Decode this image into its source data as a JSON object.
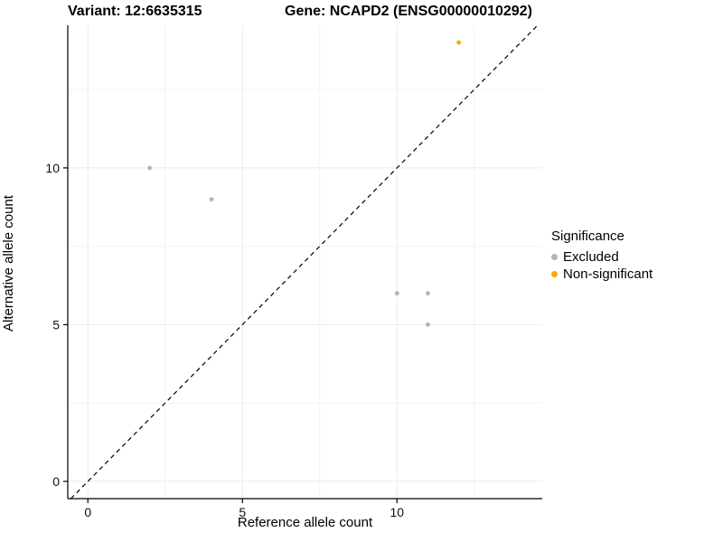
{
  "chart_data": {
    "type": "scatter",
    "title_left": "Variant: 12:6635315",
    "title_right": "Gene: NCAPD2 (ENSG00000010292)",
    "xlabel": "Reference allele count",
    "ylabel": "Alternative allele count",
    "xlim": [
      -0.65,
      14.7
    ],
    "ylim": [
      -0.55,
      14.55
    ],
    "xticks": [
      0,
      5,
      10
    ],
    "yticks": [
      0,
      5,
      10
    ],
    "grid": "major and minor light gray",
    "identity_line": {
      "slope": 1,
      "intercept": 0,
      "style": "dashed",
      "color": "#000000"
    },
    "series": [
      {
        "name": "Excluded",
        "color": "#b4b4b4",
        "points": [
          [
            2,
            10
          ],
          [
            4,
            9
          ],
          [
            10,
            6
          ],
          [
            11,
            6
          ],
          [
            11,
            5
          ]
        ]
      },
      {
        "name": "Non-significant",
        "color": "#ffa500",
        "points": [
          [
            12,
            14
          ]
        ]
      }
    ],
    "legend": {
      "title": "Significance",
      "position": "right",
      "items": [
        {
          "label": "Excluded",
          "color": "#b4b4b4"
        },
        {
          "label": "Non-significant",
          "color": "#ffa500"
        }
      ]
    }
  }
}
